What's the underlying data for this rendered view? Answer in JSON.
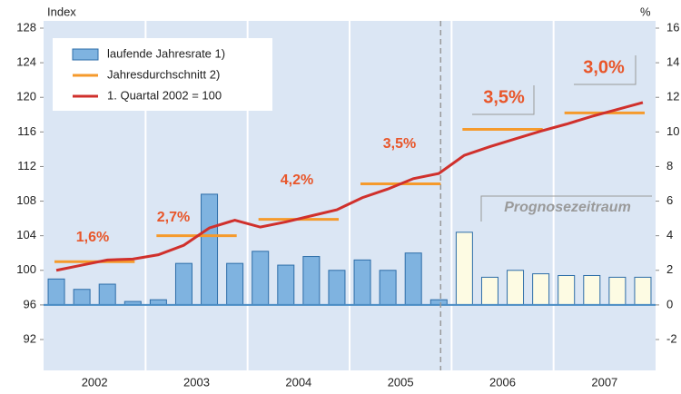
{
  "chart_data": {
    "type": "bar",
    "y_label": "Index",
    "y2_label": "%",
    "groups": [
      "2002",
      "2003",
      "2004",
      "2005",
      "2006",
      "2007"
    ],
    "ylim": [
      92,
      128
    ],
    "yticks": [
      92,
      96,
      100,
      104,
      108,
      112,
      116,
      120,
      124,
      128
    ],
    "y2lim": [
      -2,
      16
    ],
    "y2ticks": [
      -2,
      0,
      2,
      4,
      6,
      8,
      10,
      12,
      14,
      16
    ],
    "forecast_from_group": "2006",
    "series": [
      {
        "name": "laufende Jahresrate 1)",
        "type": "bar",
        "axis": "y2",
        "color": "#7fb3e0",
        "forecast_color": "#fdfbe3",
        "values": [
          1.5,
          0.9,
          1.2,
          0.2,
          0.3,
          2.4,
          6.4,
          2.4,
          3.1,
          2.3,
          2.8,
          2.0,
          2.6,
          2.0,
          3.0,
          0.3,
          4.2,
          1.6,
          2.0,
          1.8,
          1.7,
          1.7,
          1.6,
          1.6
        ]
      },
      {
        "name": "Jahresdurchschnitt 2)",
        "type": "step",
        "color": "#f59a2c",
        "values": [
          101.0,
          104.0,
          105.9,
          110.0,
          116.3,
          118.2
        ]
      },
      {
        "name": "1. Quartal 2002 = 100",
        "type": "line",
        "color": "#d0302c",
        "values": [
          100.0,
          100.6,
          101.2,
          101.3,
          101.8,
          102.9,
          104.9,
          105.8,
          105.0,
          105.6,
          106.3,
          107.0,
          108.4,
          109.4,
          110.6,
          111.2,
          113.3,
          114.3,
          115.2,
          116.1,
          116.9,
          117.8,
          118.6,
          119.4
        ]
      }
    ],
    "annotations": [
      "1,6%",
      "2,7%",
      "4,2%",
      "3,5%",
      "3,5%",
      "3,0%",
      "Prognosezeitraum"
    ]
  }
}
